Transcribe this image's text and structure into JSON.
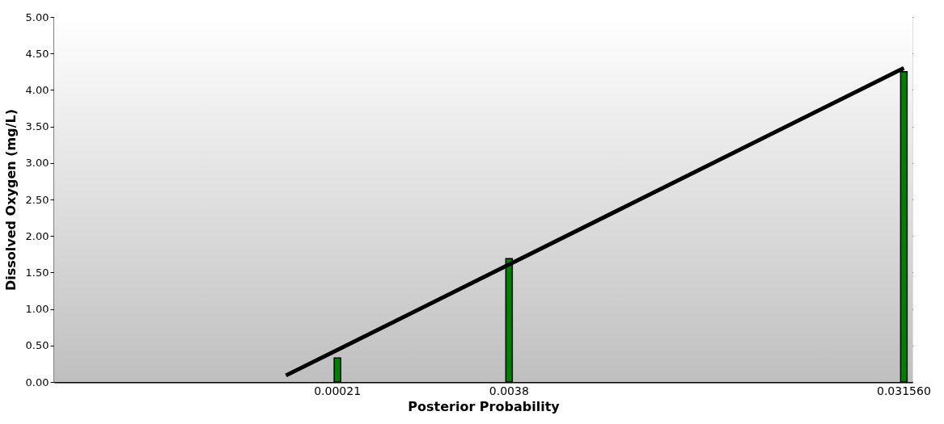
{
  "chart_data": {
    "type": "bar",
    "xlabel": "Posterior Probability",
    "ylabel": "Dissolved Oxygen (mg/L)",
    "categories": [
      null,
      null,
      null,
      null,
      null,
      null,
      null,
      null,
      null,
      null,
      null,
      null,
      null,
      null,
      null,
      null,
      "0.00021",
      null,
      null,
      null,
      null,
      null,
      null,
      null,
      null,
      null,
      "0.0038",
      null,
      null,
      null,
      null,
      null,
      null,
      null,
      null,
      null,
      null,
      null,
      null,
      null,
      null,
      null,
      null,
      null,
      null,
      null,
      null,
      null,
      null,
      "0.031560"
    ],
    "series": [
      {
        "color": "#008000",
        "values": [
          null,
          null,
          null,
          null,
          null,
          null,
          null,
          null,
          null,
          null,
          null,
          null,
          null,
          null,
          null,
          null,
          0.33,
          null,
          null,
          null,
          null,
          null,
          null,
          null,
          null,
          null,
          1.69,
          null,
          null,
          null,
          null,
          null,
          null,
          null,
          null,
          null,
          null,
          null,
          null,
          null,
          null,
          null,
          null,
          null,
          null,
          null,
          null,
          null,
          null,
          4.25
        ]
      },
      {
        "type": "line",
        "color": "#000000",
        "values": [
          null,
          null,
          null,
          null,
          null,
          null,
          null,
          null,
          null,
          null,
          null,
          null,
          null,
          0.09,
          null,
          null,
          0.44,
          null,
          null,
          null,
          null,
          null,
          null,
          null,
          null,
          null,
          1.61,
          null,
          null,
          null,
          null,
          null,
          null,
          null,
          null,
          null,
          null,
          null,
          null,
          null,
          null,
          null,
          null,
          null,
          null,
          null,
          null,
          null,
          null,
          4.3
        ]
      }
    ],
    "ylim": [
      0,
      5
    ],
    "yticks": [
      {
        "value": 0,
        "label": "0.00"
      },
      {
        "value": 0.5,
        "label": "0.50"
      },
      {
        "value": 1,
        "label": "1.00"
      },
      {
        "value": 1.5,
        "label": "1.50"
      },
      {
        "value": 2,
        "label": "2.00"
      },
      {
        "value": 2.5,
        "label": "2.50"
      },
      {
        "value": 3,
        "label": "3.00"
      },
      {
        "value": 3.5,
        "label": "3.50"
      },
      {
        "value": 4,
        "label": "4.00"
      },
      {
        "value": 4.5,
        "label": "4.50"
      },
      {
        "value": 5,
        "label": "5.00"
      }
    ],
    "grid": "y",
    "marker": "none"
  }
}
